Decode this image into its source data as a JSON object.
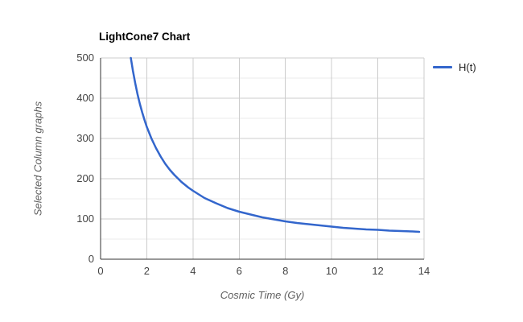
{
  "colors": {
    "series_blue": "#3366cc",
    "grid_major": "#cccccc",
    "grid_minor": "#ebebeb",
    "axis_line": "#333333",
    "tick_text": "#444444",
    "axis_title_text": "#5f5f5f",
    "title_text": "#000000",
    "background": "#ffffff"
  },
  "chart_data": {
    "type": "line",
    "title": "LightCone7 Chart",
    "xlabel": "Cosmic Time (Gy)",
    "ylabel": "Selected Column graphs",
    "xlim": [
      0,
      14
    ],
    "ylim": [
      0,
      500
    ],
    "xticks": [
      0,
      2,
      4,
      6,
      8,
      10,
      12,
      14
    ],
    "yticks": [
      0,
      100,
      200,
      300,
      400,
      500
    ],
    "y_minor_step": 50,
    "grid": true,
    "legend_position": "right",
    "series": [
      {
        "name": "H(t)",
        "color": "#3366cc",
        "x": [
          1.31,
          1.4,
          1.5,
          1.6,
          1.7,
          1.8,
          1.9,
          2,
          2.2,
          2.4,
          2.6,
          2.8,
          3,
          3.2,
          3.5,
          3.8,
          4,
          4.5,
          5,
          5.5,
          6,
          6.5,
          7,
          7.5,
          8,
          8.5,
          9,
          9.5,
          10,
          10.5,
          11,
          11.5,
          12,
          12.5,
          13,
          13.5,
          13.79
        ],
        "y": [
          500,
          468,
          437,
          410,
          386,
          365,
          346,
          329,
          300,
          276,
          255,
          237,
          222,
          209,
          192,
          178,
          170,
          152,
          139,
          127,
          118,
          111,
          104,
          99,
          94,
          90,
          87,
          84,
          81,
          78,
          76,
          74,
          73,
          71,
          70,
          69,
          68
        ]
      }
    ]
  }
}
